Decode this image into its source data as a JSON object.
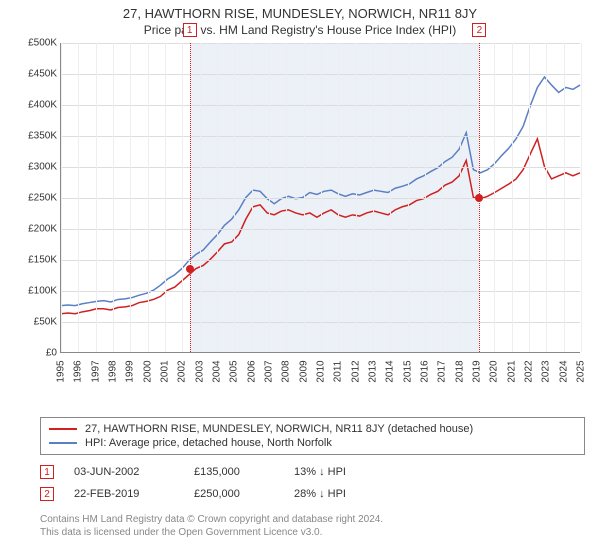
{
  "title": "27, HAWTHORN RISE, MUNDESLEY, NORWICH, NR11 8JY",
  "subtitle": "Price paid vs. HM Land Registry's House Price Index (HPI)",
  "chart": {
    "type": "line",
    "background_color": "#ffffff",
    "grid_color": "#dddddd",
    "axis_color": "#888888",
    "label_fontsize": 10,
    "ylim": [
      0,
      500000
    ],
    "ytick_step": 50000,
    "yticks": [
      "£0",
      "£50K",
      "£100K",
      "£150K",
      "£200K",
      "£250K",
      "£300K",
      "£350K",
      "£400K",
      "£450K",
      "£500K"
    ],
    "xlim": [
      1995,
      2025
    ],
    "xticks": [
      1995,
      1996,
      1997,
      1998,
      1999,
      2000,
      2001,
      2002,
      2003,
      2004,
      2005,
      2006,
      2007,
      2008,
      2009,
      2010,
      2011,
      2012,
      2013,
      2014,
      2015,
      2016,
      2017,
      2018,
      2019,
      2020,
      2021,
      2022,
      2023,
      2024,
      2025
    ],
    "shade_from": 2002.42,
    "shade_to": 2019.14,
    "shade_color": "rgba(130,160,200,0.15)",
    "marker_year_1": 2002.42,
    "marker_year_2": 2019.14,
    "marker_line_color": "#d02020",
    "series": {
      "property": {
        "color": "#d02020",
        "width": 1.5,
        "values": [
          62,
          63,
          62,
          65,
          67,
          70,
          70,
          68,
          72,
          73,
          75,
          80,
          82,
          85,
          90,
          100,
          105,
          115,
          125,
          135,
          140,
          150,
          162,
          175,
          178,
          190,
          215,
          235,
          238,
          225,
          222,
          228,
          230,
          225,
          222,
          225,
          218,
          225,
          230,
          222,
          218,
          222,
          220,
          225,
          228,
          225,
          222,
          230,
          235,
          238,
          245,
          248,
          255,
          260,
          270,
          275,
          285,
          310,
          250,
          248,
          252,
          258,
          265,
          272,
          280,
          295,
          320,
          345,
          300,
          280,
          285,
          290,
          285,
          290
        ]
      },
      "hpi": {
        "color": "#5a7fc4",
        "width": 1.5,
        "values": [
          75,
          76,
          75,
          78,
          80,
          82,
          83,
          81,
          85,
          86,
          88,
          92,
          95,
          100,
          108,
          118,
          125,
          135,
          148,
          158,
          165,
          178,
          190,
          205,
          215,
          230,
          250,
          262,
          260,
          248,
          240,
          248,
          252,
          248,
          250,
          258,
          255,
          260,
          262,
          256,
          252,
          256,
          254,
          258,
          262,
          260,
          258,
          265,
          268,
          272,
          280,
          285,
          292,
          298,
          308,
          315,
          328,
          355,
          295,
          290,
          295,
          305,
          318,
          330,
          345,
          365,
          398,
          428,
          445,
          432,
          420,
          428,
          425,
          432
        ]
      }
    },
    "sale_points": [
      {
        "year": 2002.42,
        "price": 135000
      },
      {
        "year": 2019.14,
        "price": 250000
      }
    ]
  },
  "legend": {
    "items": [
      {
        "color": "#d02020",
        "label": "27, HAWTHORN RISE, MUNDESLEY, NORWICH, NR11 8JY (detached house)"
      },
      {
        "color": "#5a7fc4",
        "label": "HPI: Average price, detached house, North Norfolk"
      }
    ]
  },
  "sales": [
    {
      "num": "1",
      "date": "03-JUN-2002",
      "price": "£135,000",
      "pct": "13% ↓ HPI"
    },
    {
      "num": "2",
      "date": "22-FEB-2019",
      "price": "£250,000",
      "pct": "28% ↓ HPI"
    }
  ],
  "footer_line1": "Contains HM Land Registry data © Crown copyright and database right 2024.",
  "footer_line2": "This data is licensed under the Open Government Licence v3.0."
}
